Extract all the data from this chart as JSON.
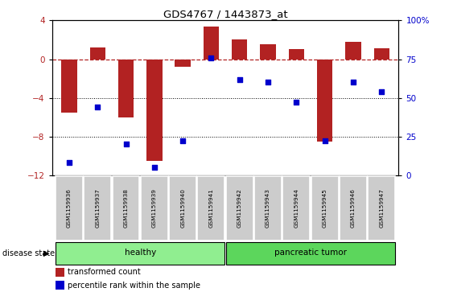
{
  "title": "GDS4767 / 1443873_at",
  "samples": [
    "GSM1159936",
    "GSM1159937",
    "GSM1159938",
    "GSM1159939",
    "GSM1159940",
    "GSM1159941",
    "GSM1159942",
    "GSM1159943",
    "GSM1159944",
    "GSM1159945",
    "GSM1159946",
    "GSM1159947"
  ],
  "transformed_count": [
    -5.5,
    1.2,
    -6.0,
    -10.5,
    -0.8,
    3.4,
    2.0,
    1.5,
    1.0,
    -8.5,
    1.8,
    1.1
  ],
  "percentile_rank": [
    8,
    44,
    20,
    5,
    22,
    76,
    62,
    60,
    47,
    22,
    60,
    54
  ],
  "bar_color": "#b22222",
  "dot_color": "#0000cc",
  "healthy_count": 6,
  "tumor_count": 6,
  "ylim_left": [
    -12,
    4
  ],
  "ylim_right": [
    0,
    100
  ],
  "yticks_left": [
    -12,
    -8,
    -4,
    0,
    4
  ],
  "yticks_right": [
    0,
    25,
    50,
    75,
    100
  ],
  "hline_y": 0,
  "dotted_lines": [
    -4,
    -8
  ],
  "label_healthy": "healthy",
  "label_tumor": "pancreatic tumor",
  "disease_state_label": "disease state",
  "legend_bar_label": "transformed count",
  "legend_dot_label": "percentile rank within the sample",
  "bar_width": 0.55,
  "healthy_color": "#90ee90",
  "tumor_color": "#5cd65c"
}
